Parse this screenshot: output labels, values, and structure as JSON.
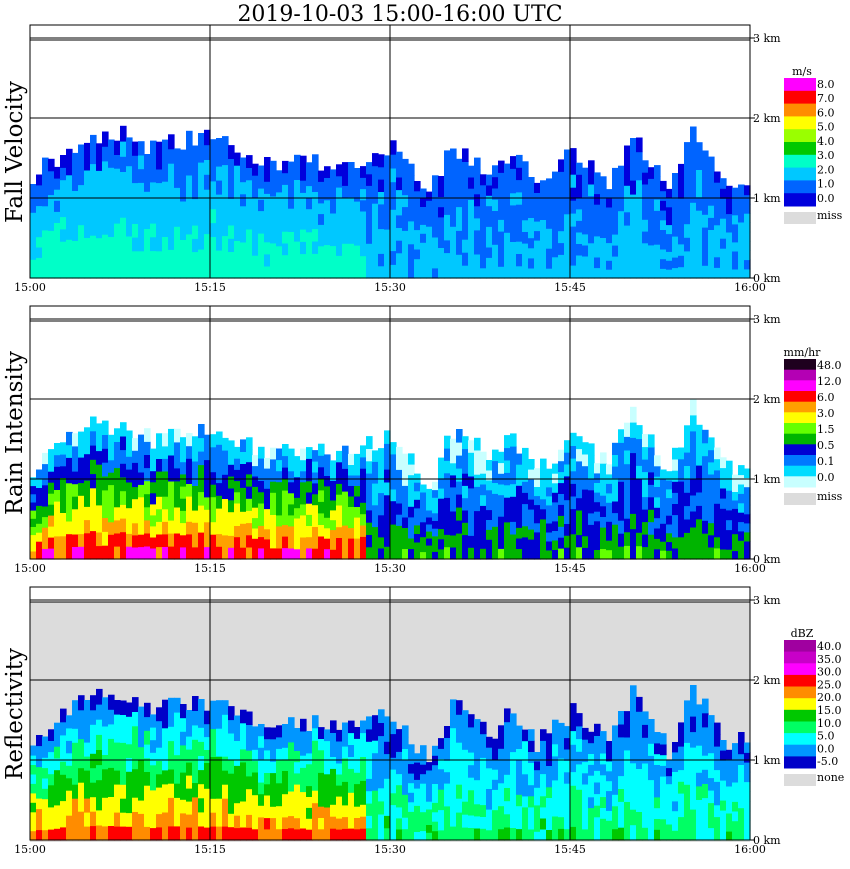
{
  "title": "2019-10-03   15:00-16:00 UTC",
  "x_ticks": [
    "15:00",
    "15:15",
    "15:30",
    "15:45",
    "16:00"
  ],
  "y_ticks": [
    "0 km",
    "1 km",
    "2 km",
    "3 km"
  ],
  "chart_data": [
    {
      "type": "heatmap",
      "title": "Fall Velocity",
      "xlabel": "",
      "ylabel": "Fall Velocity",
      "unit": "m/s",
      "xlim": [
        "15:00",
        "16:00"
      ],
      "ylim_km": [
        0,
        3.0
      ],
      "colorbar": {
        "labels": [
          "8.0",
          "7.0",
          "6.0",
          "5.0",
          "4.0",
          "3.0",
          "2.0",
          "1.0",
          "0.0"
        ],
        "colors": [
          "#ff00ff",
          "#ff0000",
          "#ff8c00",
          "#ffff00",
          "#9aff00",
          "#00c800",
          "#00ffc8",
          "#00c8ff",
          "#0064ff",
          "#0000dc"
        ],
        "missing_label": "miss",
        "missing_color": "#dcdcdc"
      },
      "echo_top_km": {
        "x_min": [
          0,
          3,
          5,
          8,
          10,
          12,
          15,
          18,
          20,
          22,
          25,
          27,
          30,
          33,
          35,
          38,
          40,
          42,
          45,
          48,
          50,
          53,
          55,
          58,
          60
        ],
        "top": [
          1.3,
          1.6,
          1.8,
          1.8,
          1.6,
          1.7,
          1.75,
          1.5,
          1.4,
          1.5,
          1.4,
          1.5,
          1.6,
          1.1,
          1.6,
          1.3,
          1.5,
          1.2,
          1.55,
          1.2,
          1.8,
          1.1,
          1.8,
          1.2,
          1.3
        ]
      },
      "main_value_m_s": [
        1.0,
        3.0
      ],
      "max_value_m_s": 8.0
    },
    {
      "type": "heatmap",
      "title": "Rain Intensity",
      "xlabel": "",
      "ylabel": "Rain Intensity",
      "unit": "mm/hr",
      "xlim": [
        "15:00",
        "16:00"
      ],
      "ylim_km": [
        0,
        3.0
      ],
      "colorbar": {
        "labels": [
          "48.0",
          "12.0",
          "6.0",
          "3.0",
          "1.5",
          "0.5",
          "0.1",
          "0.0"
        ],
        "colors": [
          "#1e001e",
          "#b400b4",
          "#ff00ff",
          "#ff0000",
          "#ffa000",
          "#ffff00",
          "#64ff00",
          "#00b400",
          "#0000d2",
          "#0078ff",
          "#00dcff",
          "#c8ffff"
        ],
        "missing_label": "miss",
        "missing_color": "#dcdcdc"
      },
      "echo_top_km": {
        "x_min": [
          0,
          3,
          5,
          8,
          10,
          12,
          15,
          18,
          20,
          22,
          25,
          27,
          30,
          33,
          35,
          38,
          40,
          42,
          45,
          48,
          50,
          53,
          55,
          58,
          60
        ],
        "top": [
          1.1,
          1.6,
          1.7,
          1.6,
          1.5,
          1.6,
          1.6,
          1.4,
          1.3,
          1.4,
          1.3,
          1.4,
          1.5,
          0.9,
          1.6,
          1.3,
          1.5,
          1.1,
          1.5,
          1.2,
          1.8,
          1.1,
          1.9,
          1.2,
          1.1
        ]
      },
      "peak_mm_hr": 12.0
    },
    {
      "type": "heatmap",
      "title": "Reflectivity",
      "xlabel": "",
      "ylabel": "Reflectivity",
      "unit": "dBZ",
      "xlim": [
        "15:00",
        "16:00"
      ],
      "ylim_km": [
        0,
        3.0
      ],
      "colorbar": {
        "labels": [
          "40.0",
          "35.0",
          "30.0",
          "25.0",
          "20.0",
          "15.0",
          "10.0",
          "5.0",
          "0.0",
          "-5.0"
        ],
        "colors": [
          "#a000a0",
          "#c800c8",
          "#ff00ff",
          "#ff0000",
          "#ff8c00",
          "#ffff00",
          "#00c800",
          "#00ff64",
          "#00ffff",
          "#0096ff",
          "#0000c8"
        ],
        "missing_label": "none",
        "missing_color": "#dcdcdc"
      },
      "echo_top_km": {
        "x_min": [
          0,
          3,
          5,
          8,
          10,
          12,
          15,
          18,
          20,
          22,
          25,
          27,
          30,
          33,
          35,
          38,
          40,
          42,
          45,
          48,
          50,
          53,
          55,
          58,
          60
        ],
        "top": [
          1.3,
          1.6,
          1.8,
          1.7,
          1.6,
          1.7,
          1.7,
          1.5,
          1.4,
          1.5,
          1.4,
          1.5,
          1.6,
          1.0,
          1.7,
          1.3,
          1.6,
          1.2,
          1.6,
          1.2,
          1.9,
          1.1,
          1.9,
          1.2,
          1.3
        ]
      },
      "peak_dBZ": 30.0
    }
  ]
}
